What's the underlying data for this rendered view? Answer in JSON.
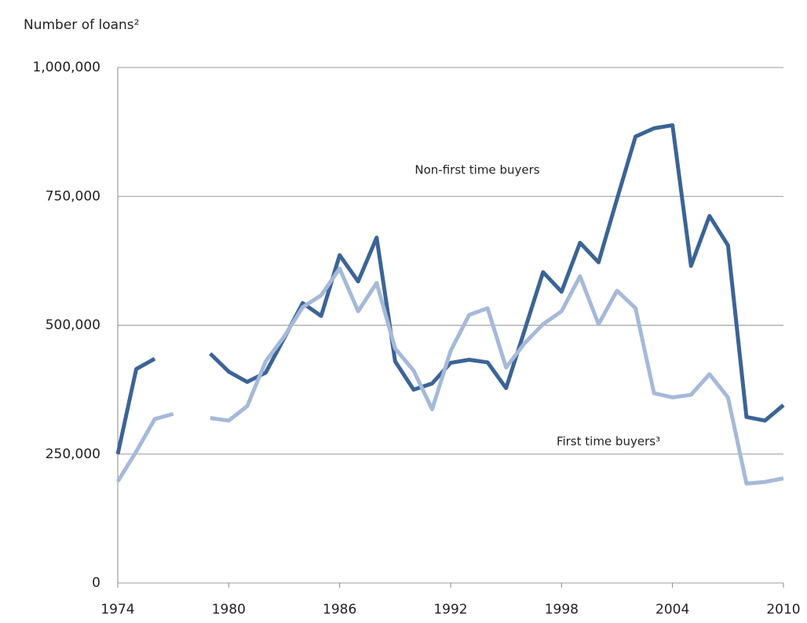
{
  "chart_data": {
    "type": "line",
    "y_label": "Number of loans²",
    "x": [
      1974,
      1975,
      1976,
      1977,
      1978,
      1979,
      1980,
      1981,
      1982,
      1983,
      1984,
      1985,
      1986,
      1987,
      1988,
      1989,
      1990,
      1991,
      1992,
      1993,
      1994,
      1995,
      1996,
      1997,
      1998,
      1999,
      2000,
      2001,
      2002,
      2003,
      2004,
      2005,
      2006,
      2007,
      2008,
      2009,
      2010
    ],
    "series": [
      {
        "name": "Non-first time buyers",
        "color": "#3b6496",
        "values": [
          250000,
          415000,
          435000,
          null,
          null,
          445000,
          410000,
          390000,
          408000,
          475000,
          543000,
          518000,
          636000,
          585000,
          670000,
          430000,
          375000,
          387000,
          427000,
          433000,
          428000,
          378000,
          490000,
          603000,
          565000,
          660000,
          622000,
          745000,
          866000,
          882000,
          888000,
          615000,
          712000,
          655000,
          322000,
          315000,
          345000
        ]
      },
      {
        "name": "First time buyers³",
        "color": "#a5b9d9",
        "values": [
          197000,
          255000,
          318000,
          328000,
          null,
          320000,
          315000,
          343000,
          430000,
          478000,
          535000,
          558000,
          610000,
          527000,
          582000,
          455000,
          412000,
          337000,
          450000,
          520000,
          533000,
          418000,
          465000,
          502000,
          527000,
          595000,
          502000,
          567000,
          533000,
          368000,
          360000,
          365000,
          405000,
          360000,
          193000,
          196000,
          203000
        ]
      }
    ],
    "xlim": [
      1974,
      2010
    ],
    "xticks": [
      1974,
      1980,
      1986,
      1992,
      1998,
      2004,
      2010
    ],
    "ylim": [
      0,
      1000000
    ],
    "yticks": [
      0,
      {
        "value": 250000,
        "label": "250,000"
      },
      {
        "value": 500000,
        "label": "500,000"
      },
      {
        "value": 750000,
        "label": "750,000"
      },
      {
        "value": 1000000,
        "label": "1,000,000"
      }
    ],
    "grid": true
  }
}
